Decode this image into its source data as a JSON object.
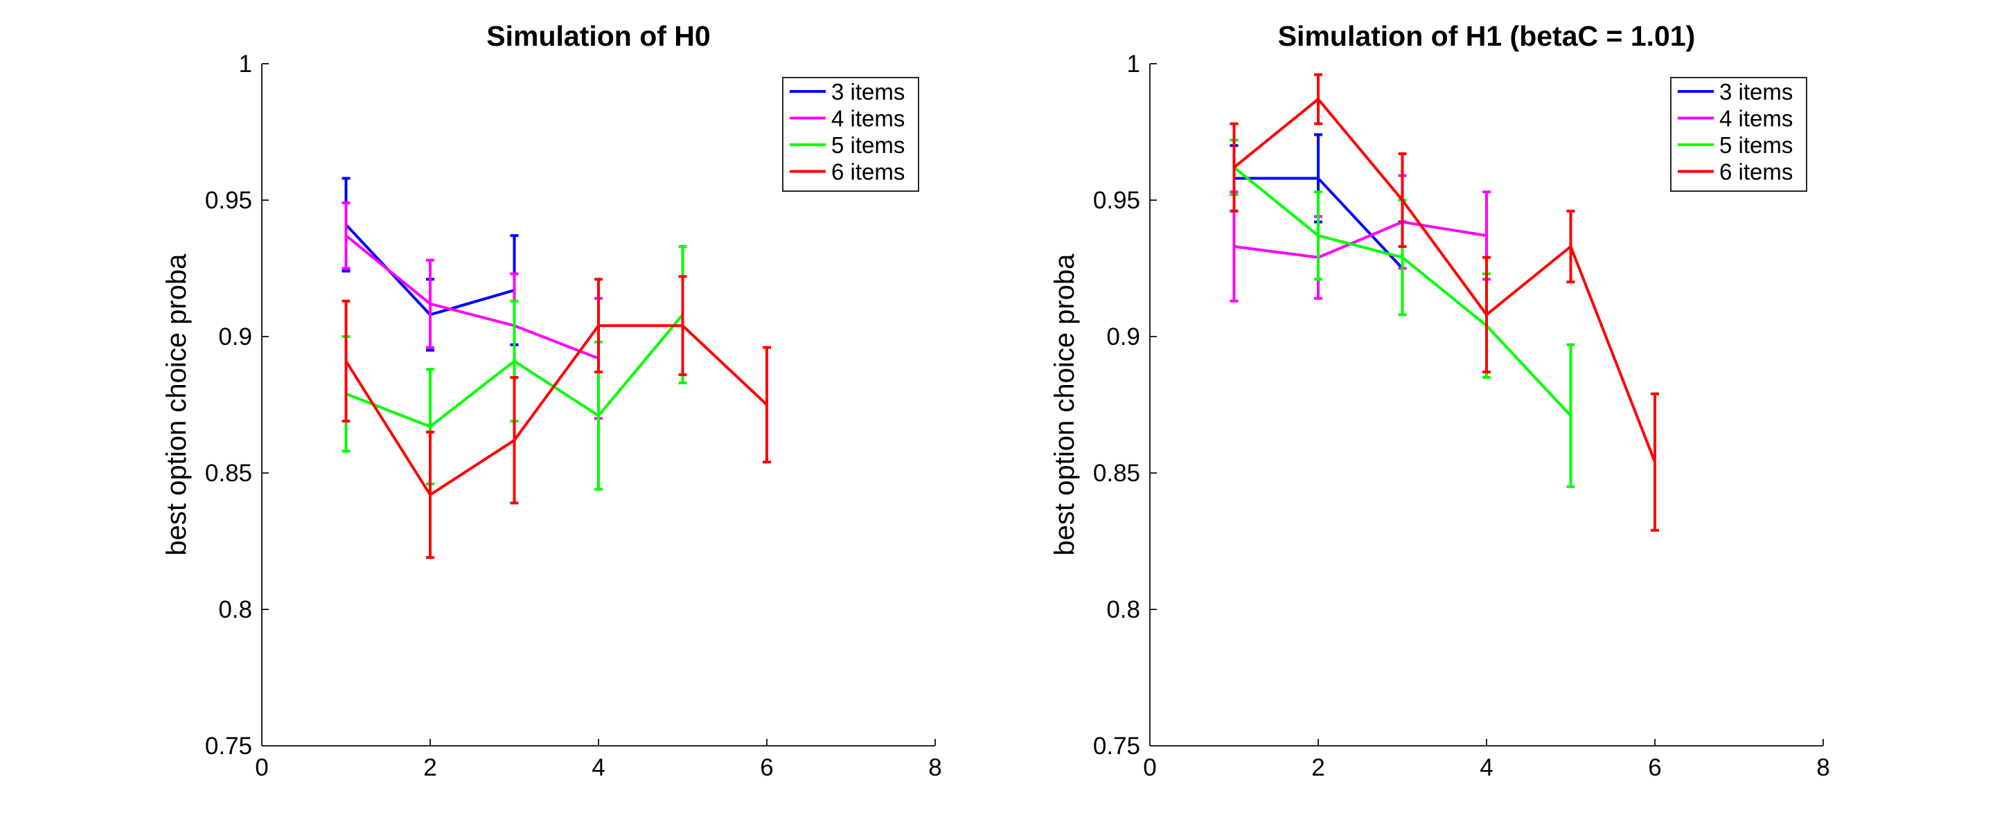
{
  "chart_data": [
    {
      "type": "line",
      "title": "Simulation of H0",
      "xlabel": "",
      "ylabel": "best option choice proba",
      "xlim": [
        0,
        8
      ],
      "ylim": [
        0.75,
        1
      ],
      "xticks": [
        0,
        2,
        4,
        6,
        8
      ],
      "yticks": [
        0.75,
        0.8,
        0.85,
        0.9,
        0.95,
        1
      ],
      "xtick_labels": [
        "0",
        "2",
        "4",
        "6",
        "8"
      ],
      "ytick_labels": [
        "0.75",
        "0.8",
        "0.85",
        "0.9",
        "0.95",
        "1"
      ],
      "error_bars": true,
      "grid": false,
      "legend": "top-right",
      "series": [
        {
          "name": "3 items",
          "color": "#0000ff",
          "x": [
            1,
            2,
            3
          ],
          "y": [
            0.941,
            0.908,
            0.917
          ],
          "err": [
            0.017,
            0.013,
            0.02
          ]
        },
        {
          "name": "4 items",
          "color": "#ff00ff",
          "x": [
            1,
            2,
            3,
            4
          ],
          "y": [
            0.937,
            0.912,
            0.904,
            0.892
          ],
          "err": [
            0.012,
            0.016,
            0.019,
            0.022
          ]
        },
        {
          "name": "5 items",
          "color": "#00ff00",
          "x": [
            1,
            2,
            3,
            4,
            5
          ],
          "y": [
            0.879,
            0.867,
            0.891,
            0.871,
            0.908
          ],
          "err": [
            0.021,
            0.021,
            0.022,
            0.027,
            0.025
          ]
        },
        {
          "name": "6 items",
          "color": "#ff0000",
          "x": [
            1,
            2,
            3,
            4,
            5,
            6
          ],
          "y": [
            0.891,
            0.842,
            0.862,
            0.904,
            0.904,
            0.875
          ],
          "err": [
            0.022,
            0.023,
            0.023,
            0.017,
            0.018,
            0.021
          ]
        }
      ]
    },
    {
      "type": "line",
      "title": "Simulation of H1 (betaC = 1.01)",
      "xlabel": "",
      "ylabel": "best option choice proba",
      "xlim": [
        0,
        8
      ],
      "ylim": [
        0.75,
        1
      ],
      "xticks": [
        0,
        2,
        4,
        6,
        8
      ],
      "yticks": [
        0.75,
        0.8,
        0.85,
        0.9,
        0.95,
        1
      ],
      "xtick_labels": [
        "0",
        "2",
        "4",
        "6",
        "8"
      ],
      "ytick_labels": [
        "0.75",
        "0.8",
        "0.85",
        "0.9",
        "0.95",
        "1"
      ],
      "error_bars": true,
      "grid": false,
      "legend": "top-right",
      "series": [
        {
          "name": "3 items",
          "color": "#0000ff",
          "x": [
            1,
            2,
            3
          ],
          "y": [
            0.958,
            0.958,
            0.925
          ],
          "err": [
            0.012,
            0.016,
            0.017
          ]
        },
        {
          "name": "4 items",
          "color": "#ff00ff",
          "x": [
            1,
            2,
            3,
            4
          ],
          "y": [
            0.933,
            0.929,
            0.942,
            0.937
          ],
          "err": [
            0.02,
            0.015,
            0.017,
            0.016
          ]
        },
        {
          "name": "5 items",
          "color": "#00ff00",
          "x": [
            1,
            2,
            3,
            4,
            5
          ],
          "y": [
            0.962,
            0.937,
            0.929,
            0.904,
            0.871
          ],
          "err": [
            0.01,
            0.016,
            0.021,
            0.019,
            0.026
          ]
        },
        {
          "name": "6 items",
          "color": "#ff0000",
          "x": [
            1,
            2,
            3,
            4,
            5,
            6
          ],
          "y": [
            0.962,
            0.987,
            0.95,
            0.908,
            0.933,
            0.854
          ],
          "err": [
            0.016,
            0.009,
            0.017,
            0.021,
            0.013,
            0.025
          ]
        }
      ]
    }
  ]
}
